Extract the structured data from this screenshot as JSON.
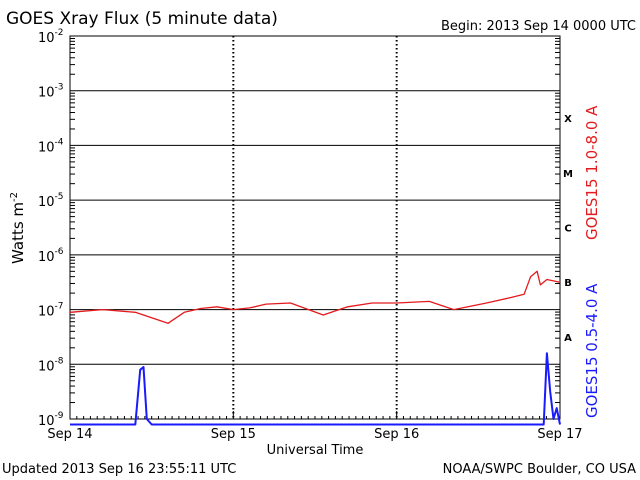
{
  "header": {
    "title": "GOES Xray Flux (5 minute data)",
    "begin": "Begin:  2013 Sep 14 0000 UTC"
  },
  "footer": {
    "updated": "Updated 2013 Sep 16 23:55:11 UTC",
    "source": "NOAA/SWPC Boulder, CO USA"
  },
  "chart_data": {
    "type": "line",
    "title": "GOES Xray Flux (5 minute data)",
    "xlabel": "Universal Time",
    "ylabel": "Watts m",
    "ylabel_sup": "-2",
    "y_scale": "log",
    "ylim": [
      1e-09,
      0.01
    ],
    "y_ticks": [
      {
        "base": "10",
        "exp": "-9",
        "v": -9
      },
      {
        "base": "10",
        "exp": "-8",
        "v": -8
      },
      {
        "base": "10",
        "exp": "-7",
        "v": -7
      },
      {
        "base": "10",
        "exp": "-6",
        "v": -6
      },
      {
        "base": "10",
        "exp": "-5",
        "v": -5
      },
      {
        "base": "10",
        "exp": "-4",
        "v": -4
      },
      {
        "base": "10",
        "exp": "-3",
        "v": -3
      },
      {
        "base": "10",
        "exp": "-2",
        "v": -2
      }
    ],
    "x_ticks": [
      "Sep 14",
      "Sep 15",
      "Sep 16",
      "Sep 17"
    ],
    "xlim": [
      "2013-09-14 00:00",
      "2013-09-17 00:00"
    ],
    "grid": true,
    "flare_classes": [
      {
        "label": "A",
        "log_min": -8
      },
      {
        "label": "B",
        "log_min": -7
      },
      {
        "label": "C",
        "log_min": -6
      },
      {
        "label": "M",
        "log_min": -5
      },
      {
        "label": "X",
        "log_min": -4
      }
    ],
    "series": [
      {
        "name": "GOES15 1.0-8.0 A",
        "color": "#e41a1c",
        "x_days": [
          0.0,
          0.2,
          0.4,
          0.6,
          0.7,
          0.8,
          0.9,
          1.0,
          1.1,
          1.2,
          1.35,
          1.55,
          1.7,
          1.85,
          2.0,
          2.2,
          2.35,
          2.55,
          2.7,
          2.78,
          2.82,
          2.86,
          2.88,
          2.92,
          3.0
        ],
        "log_flux": [
          -7.05,
          -7.0,
          -7.05,
          -7.25,
          -7.05,
          -6.98,
          -6.95,
          -7.0,
          -6.97,
          -6.9,
          -6.88,
          -7.1,
          -6.95,
          -6.88,
          -6.88,
          -6.85,
          -7.0,
          -6.88,
          -6.78,
          -6.72,
          -6.4,
          -6.3,
          -6.55,
          -6.45,
          -6.5
        ]
      },
      {
        "name": "GOES15 0.5-4.0 A",
        "color": "#1a1aff",
        "x_days": [
          0.0,
          0.4,
          0.43,
          0.45,
          0.47,
          0.5,
          1.0,
          2.0,
          2.9,
          2.92,
          2.94,
          2.96,
          2.98,
          3.0
        ],
        "log_flux": [
          -9.1,
          -9.1,
          -8.1,
          -8.05,
          -9.0,
          -9.1,
          -9.1,
          -9.1,
          -9.1,
          -7.8,
          -8.5,
          -9.0,
          -8.8,
          -9.1
        ]
      }
    ]
  }
}
